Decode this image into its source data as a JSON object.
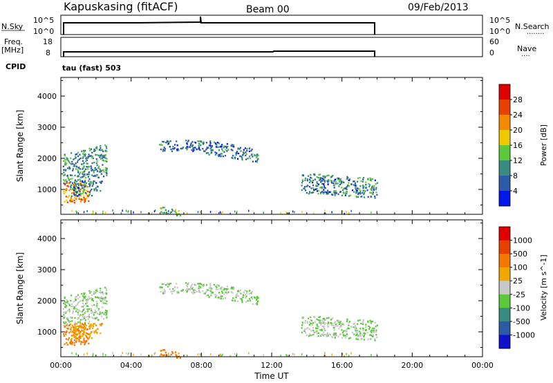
{
  "header": {
    "site": "Kapuskasing (fitACF)",
    "beam": "Beam 00",
    "date": "09/Feb/2013"
  },
  "strips": {
    "nsky": {
      "label": "N.Sky",
      "left_ticks": [
        "10^5",
        "10^0"
      ],
      "right_ticks": [
        "10^5",
        "10^0"
      ],
      "right_label": "N.Search",
      "right_dots": "........"
    },
    "freq": {
      "label_top": "Freq.",
      "label_bottom": "[MHz]",
      "left_ticks": [
        "18",
        "8"
      ],
      "right_ticks": [
        "60",
        "0"
      ],
      "right_label": "Nave",
      "right_dots": "....",
      "cpid_label": "CPID"
    },
    "mode": "tau (fast) 503"
  },
  "chart_data": [
    {
      "type": "heatmap",
      "name": "Power",
      "ylabel": "Slant Range [km]",
      "ylim": [
        200,
        4600
      ],
      "xlim": [
        0,
        24
      ],
      "y_ticks": [
        1000,
        2000,
        3000,
        4000
      ],
      "colorbar": {
        "label": "Power [dB]",
        "ticks": [
          "4",
          "8",
          "12",
          "16",
          "20",
          "24",
          "28"
        ],
        "colors": [
          "#0018e8",
          "#2c5aa8",
          "#3a8c80",
          "#5cc83a",
          "#f0c800",
          "#f48a00",
          "#e84000",
          "#e00000"
        ]
      }
    },
    {
      "type": "heatmap",
      "name": "Velocity",
      "ylabel": "Slant Range [km]",
      "ylim": [
        200,
        4600
      ],
      "xlim": [
        0,
        24
      ],
      "y_ticks": [
        1000,
        2000,
        3000,
        4000
      ],
      "colorbar": {
        "label": "Velocity [m s^-1]",
        "ticks": [
          "1000",
          "500",
          "100",
          "25",
          "-25",
          "-100",
          "-500",
          "-1000"
        ],
        "colors": [
          "#1010c8",
          "#2c5aa8",
          "#3a8c80",
          "#5cc83a",
          "#c8c8c8",
          "#f0a800",
          "#f47800",
          "#e84000",
          "#e00000"
        ]
      }
    }
  ],
  "x_axis": {
    "ticks": [
      "00:00",
      "04:00",
      "08:00",
      "12:00",
      "16:00",
      "20:00",
      "00:00"
    ],
    "label": "Time UT"
  }
}
